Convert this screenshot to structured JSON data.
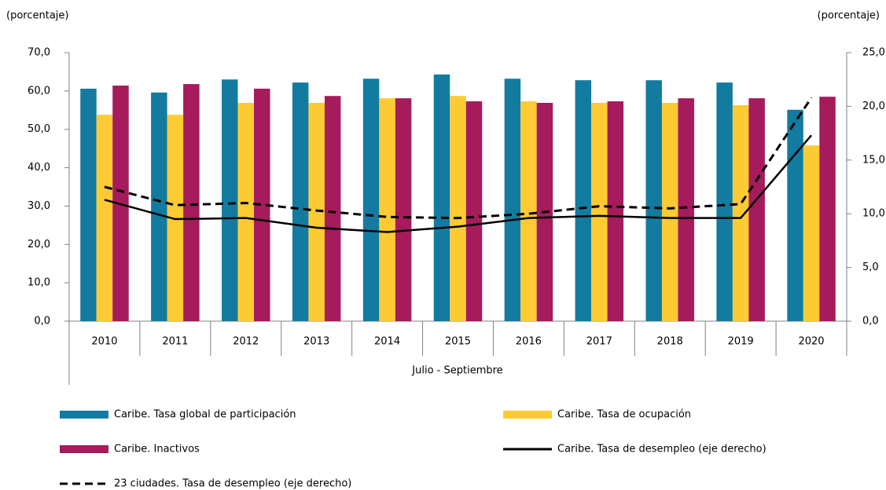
{
  "chart_data": {
    "type": "bar-line",
    "y_label": "(porcentaje)",
    "y2_label": "(porcentaje)",
    "x_label": "Julio - Septiembre",
    "categories": [
      "2010",
      "2011",
      "2012",
      "2013",
      "2014",
      "2015",
      "2016",
      "2017",
      "2018",
      "2019",
      "2020"
    ],
    "series": [
      {
        "name": "Caribe. Tasa global de participación",
        "type": "bar",
        "color": "#137ba0",
        "values": [
          60.6,
          59.6,
          63.0,
          62.2,
          63.2,
          64.3,
          63.2,
          62.8,
          62.8,
          62.2,
          55.1
        ]
      },
      {
        "name": "Caribe. Tasa de ocupación",
        "type": "bar",
        "color": "#fccb33",
        "values": [
          53.8,
          53.8,
          56.9,
          56.9,
          58.1,
          58.7,
          57.3,
          56.9,
          56.9,
          56.3,
          45.8
        ]
      },
      {
        "name": "Caribe. Inactivos",
        "type": "bar",
        "color": "#a51b5c",
        "values": [
          61.4,
          61.8,
          60.6,
          58.7,
          58.1,
          57.3,
          56.9,
          57.3,
          58.1,
          58.1,
          58.5
        ]
      },
      {
        "name": "Caribe. Tasa de desempleo (eje derecho)",
        "type": "line",
        "axis": "y2",
        "color": "#000000",
        "linestyle": "solid",
        "values": [
          11.3,
          9.5,
          9.6,
          8.7,
          8.3,
          8.8,
          9.6,
          9.8,
          9.6,
          9.6,
          17.3
        ]
      },
      {
        "name": "23 ciudades. Tasa de desempleo (eje derecho)",
        "type": "line",
        "axis": "y2",
        "color": "#000000",
        "linestyle": "dashed",
        "values": [
          12.5,
          10.8,
          11.0,
          10.3,
          9.7,
          9.6,
          10.0,
          10.7,
          10.5,
          10.9,
          20.8
        ]
      }
    ],
    "ylim": [
      0,
      70
    ],
    "yticks": [
      {
        "value": 0,
        "label": "0,0"
      },
      {
        "value": 10,
        "label": "10,0"
      },
      {
        "value": 20,
        "label": "20,0"
      },
      {
        "value": 30,
        "label": "30,0"
      },
      {
        "value": 40,
        "label": "40,0"
      },
      {
        "value": 50,
        "label": "50,0"
      },
      {
        "value": 60,
        "label": "60,0"
      },
      {
        "value": 70,
        "label": "70,0"
      }
    ],
    "y2lim": [
      0,
      25
    ],
    "y2ticks": [
      {
        "value": 0,
        "label": "0,0"
      },
      {
        "value": 5,
        "label": "5,0"
      },
      {
        "value": 10,
        "label": "10,0"
      },
      {
        "value": 15,
        "label": "15,0"
      },
      {
        "value": 20,
        "label": "20,0"
      },
      {
        "value": 25,
        "label": "25,0"
      }
    ],
    "legend": "bottom"
  }
}
